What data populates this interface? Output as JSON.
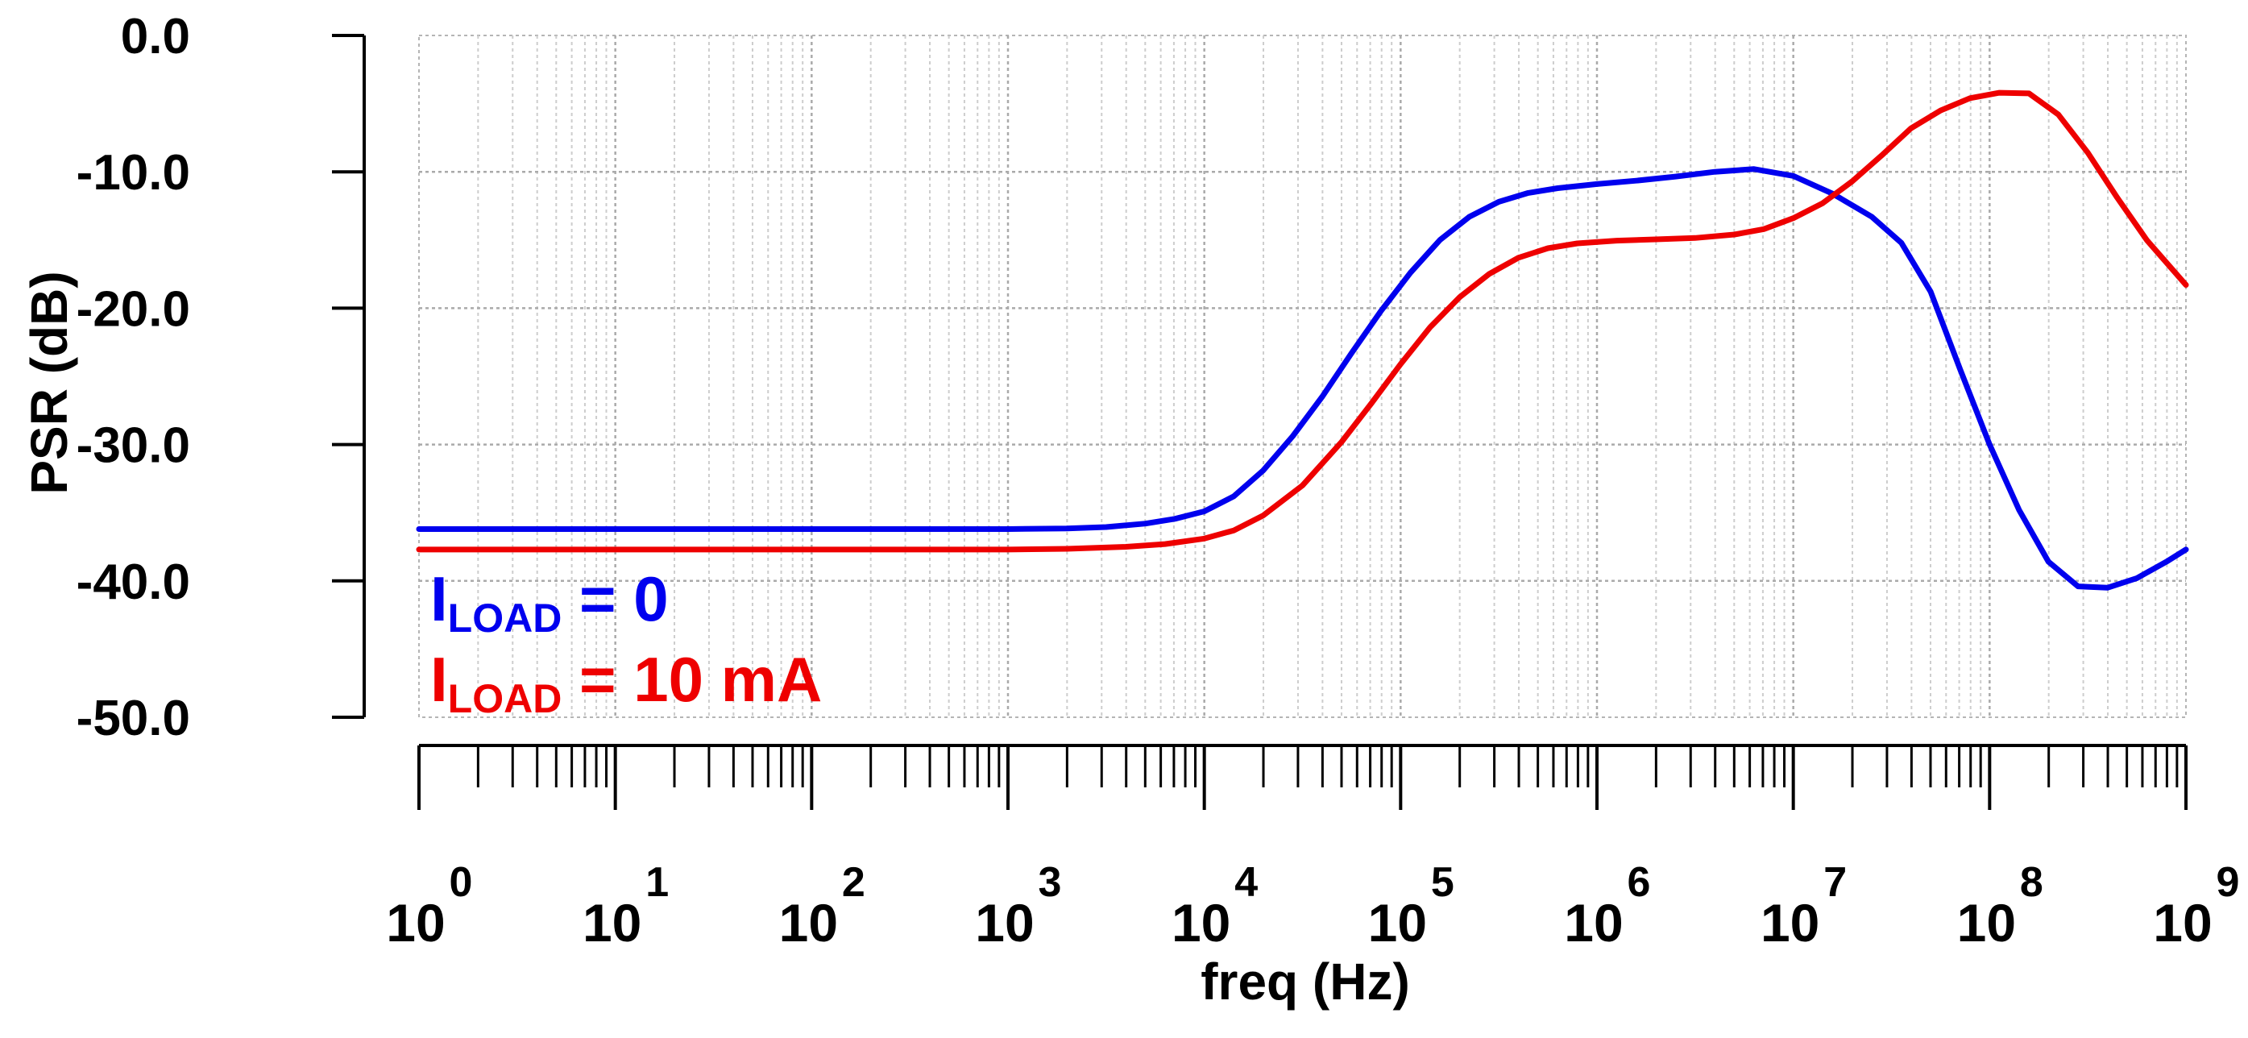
{
  "chart_data": {
    "type": "line",
    "title": "",
    "xlabel": "freq (Hz)",
    "ylabel": "PSR (dB)",
    "xscale": "log",
    "xlim": [
      1,
      1000000000
    ],
    "ylim": [
      -50,
      0
    ],
    "grid": true,
    "yticks": [
      {
        "value": 0,
        "label": "0.0"
      },
      {
        "value": -10,
        "label": "-10.0"
      },
      {
        "value": -20,
        "label": "-20.0"
      },
      {
        "value": -30,
        "label": "-30.0"
      },
      {
        "value": -40,
        "label": "-40.0"
      },
      {
        "value": -50,
        "label": "-50.0"
      }
    ],
    "xticks": [
      {
        "exp": 0,
        "base": "10",
        "sup": "0"
      },
      {
        "exp": 1,
        "base": "10",
        "sup": "1"
      },
      {
        "exp": 2,
        "base": "10",
        "sup": "2"
      },
      {
        "exp": 3,
        "base": "10",
        "sup": "3"
      },
      {
        "exp": 4,
        "base": "10",
        "sup": "4"
      },
      {
        "exp": 5,
        "base": "10",
        "sup": "5"
      },
      {
        "exp": 6,
        "base": "10",
        "sup": "6"
      },
      {
        "exp": 7,
        "base": "10",
        "sup": "7"
      },
      {
        "exp": 8,
        "base": "10",
        "sup": "8"
      },
      {
        "exp": 9,
        "base": "10",
        "sup": "9"
      }
    ],
    "legend_position": "bottom-left",
    "series": [
      {
        "name": "I_LOAD = 0",
        "label_main": "I",
        "label_sub": "LOAD",
        "label_rest": " = 0",
        "color": "#0000ee",
        "points": [
          [
            0,
            -36.2
          ],
          [
            1,
            -36.2
          ],
          [
            2,
            -36.2
          ],
          [
            3,
            -36.2
          ],
          [
            3.3,
            -36.15
          ],
          [
            3.5,
            -36.05
          ],
          [
            3.7,
            -35.8
          ],
          [
            3.85,
            -35.45
          ],
          [
            4.0,
            -34.9
          ],
          [
            4.15,
            -33.8
          ],
          [
            4.3,
            -31.9
          ],
          [
            4.45,
            -29.4
          ],
          [
            4.6,
            -26.5
          ],
          [
            4.75,
            -23.3
          ],
          [
            4.9,
            -20.2
          ],
          [
            5.05,
            -17.4
          ],
          [
            5.2,
            -15.0
          ],
          [
            5.35,
            -13.3
          ],
          [
            5.5,
            -12.2
          ],
          [
            5.65,
            -11.55
          ],
          [
            5.8,
            -11.2
          ],
          [
            6.0,
            -10.9
          ],
          [
            6.2,
            -10.65
          ],
          [
            6.4,
            -10.35
          ],
          [
            6.6,
            -10.0
          ],
          [
            6.8,
            -9.8
          ],
          [
            7.0,
            -10.3
          ],
          [
            7.2,
            -11.6
          ],
          [
            7.4,
            -13.3
          ],
          [
            7.55,
            -15.2
          ],
          [
            7.7,
            -18.8
          ],
          [
            7.85,
            -24.5
          ],
          [
            8.0,
            -30.0
          ],
          [
            8.15,
            -34.8
          ],
          [
            8.3,
            -38.6
          ],
          [
            8.45,
            -40.4
          ],
          [
            8.6,
            -40.5
          ],
          [
            8.75,
            -39.8
          ],
          [
            8.9,
            -38.6
          ],
          [
            9.0,
            -37.7
          ]
        ]
      },
      {
        "name": "I_LOAD = 10 mA",
        "label_main": "I",
        "label_sub": "LOAD",
        "label_rest": " = 10 mA",
        "color": "#ee0000",
        "points": [
          [
            0,
            -37.7
          ],
          [
            1,
            -37.7
          ],
          [
            2,
            -37.7
          ],
          [
            3,
            -37.7
          ],
          [
            3.3,
            -37.65
          ],
          [
            3.6,
            -37.5
          ],
          [
            3.8,
            -37.3
          ],
          [
            4.0,
            -36.9
          ],
          [
            4.15,
            -36.3
          ],
          [
            4.3,
            -35.2
          ],
          [
            4.5,
            -33.0
          ],
          [
            4.7,
            -29.8
          ],
          [
            4.85,
            -27.0
          ],
          [
            5.0,
            -24.1
          ],
          [
            5.15,
            -21.4
          ],
          [
            5.3,
            -19.2
          ],
          [
            5.45,
            -17.5
          ],
          [
            5.6,
            -16.3
          ],
          [
            5.75,
            -15.6
          ],
          [
            5.9,
            -15.25
          ],
          [
            6.1,
            -15.05
          ],
          [
            6.3,
            -14.95
          ],
          [
            6.5,
            -14.85
          ],
          [
            6.7,
            -14.6
          ],
          [
            6.85,
            -14.2
          ],
          [
            7.0,
            -13.4
          ],
          [
            7.15,
            -12.3
          ],
          [
            7.3,
            -10.7
          ],
          [
            7.45,
            -8.8
          ],
          [
            7.6,
            -6.8
          ],
          [
            7.75,
            -5.5
          ],
          [
            7.9,
            -4.6
          ],
          [
            8.05,
            -4.2
          ],
          [
            8.2,
            -4.25
          ],
          [
            8.35,
            -5.8
          ],
          [
            8.5,
            -8.6
          ],
          [
            8.65,
            -11.9
          ],
          [
            8.8,
            -15.0
          ],
          [
            9.0,
            -18.3
          ]
        ]
      }
    ]
  }
}
